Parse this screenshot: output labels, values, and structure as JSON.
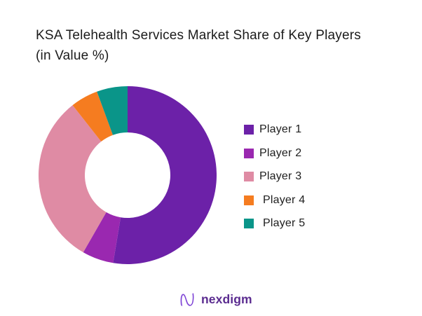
{
  "page": {
    "background": "#ffffff"
  },
  "title": {
    "full": "KSA Telehealth Services Market Share of Key Players (in Value %)",
    "lines": [
      "KSA Telehealth Services Market Share of Key Players",
      "(in Value %)"
    ]
  },
  "chart_data": {
    "type": "pie",
    "subtype": "donut",
    "title": "KSA Telehealth Services Market Share of Key Players (in Value %)",
    "labels": [
      "Player 1",
      "Player 2",
      "Player 3",
      "Player 4",
      "Player 5"
    ],
    "values": [
      52.6,
      5.7,
      31.1,
      5.0,
      5.6
    ],
    "values_note": "percent, estimated from arc angles; no data labels shown in chart",
    "colors": [
      "#6c21a8",
      "#9a28b0",
      "#df8ba4",
      "#f57c20",
      "#0a9589"
    ],
    "start_angle_deg": 0,
    "direction": "clockwise",
    "hole_ratio": 0.48,
    "legend_position": "right",
    "grid": false
  },
  "legend": {
    "items": [
      {
        "label": "Player 1",
        "color": "#6c21a8"
      },
      {
        "label": "Player 2",
        "color": "#9a28b0"
      },
      {
        "label": "Player 3",
        "color": "#df8ba4"
      },
      {
        "label": "Player 4",
        "color": "#f57c20"
      },
      {
        "label": "Player 5",
        "color": "#0a9589"
      }
    ]
  },
  "logo": {
    "text": "nexdigm",
    "text_color": "#5b2c90",
    "icon": "nexdigm-n-wave-icon",
    "icon_colors": [
      "#ae87e8",
      "#7b3fd4"
    ]
  }
}
